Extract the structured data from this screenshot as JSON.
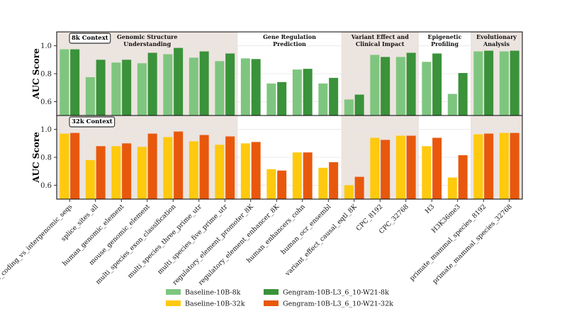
{
  "chart_data": [
    {
      "type": "bar",
      "panel_label": "8k Context",
      "ylabel": "AUC Score",
      "ylim": [
        0.5,
        1.1
      ],
      "yticks": [
        "0.6",
        "0.8",
        "1.0"
      ],
      "grid": true,
      "categories": [
        "demo_coding_vs_intergenomic_seqs",
        "splice_sites_all",
        "human_genomic_element",
        "mouse_genomic_element",
        "multi_species_exon_classification",
        "multi_species_three_prime_utr",
        "multi_species_five_prime_utr",
        "regulatory_element_promoter_8K",
        "regulatory_element_enhancer_8K",
        "human_enhancers_cohn",
        "human_ocr_ensembl",
        "variant_effect_causal_eqtl_8K",
        "CPC_8192",
        "CPC_32768",
        "H3",
        "H3K36me3",
        "primate_mammal_species_8192",
        "primate_mammal_species_32768"
      ],
      "series": [
        {
          "name": "Baseline-10B-8k",
          "color": "#7ec67f",
          "values": [
            0.975,
            0.775,
            0.88,
            0.875,
            0.94,
            0.915,
            0.89,
            0.91,
            0.73,
            0.83,
            0.73,
            0.615,
            0.935,
            0.92,
            0.885,
            0.655,
            0.96,
            0.96
          ]
        },
        {
          "name": "Gengram-10B-L3_6_10-W21-8k",
          "color": "#3a923a",
          "values": [
            0.975,
            0.9,
            0.9,
            0.95,
            0.985,
            0.96,
            0.945,
            0.905,
            0.74,
            0.835,
            0.77,
            0.65,
            0.92,
            0.95,
            0.945,
            0.805,
            0.965,
            0.965
          ]
        }
      ],
      "groups": [
        {
          "label": [
            "Genomic Structure",
            "Understanding"
          ],
          "first": 0,
          "last": 6,
          "shaded": true
        },
        {
          "label": [
            "Gene Regulation",
            "Prediction"
          ],
          "first": 7,
          "last": 10,
          "shaded": false
        },
        {
          "label": [
            "Variant Effect and",
            "Clinical Impact"
          ],
          "first": 11,
          "last": 13,
          "shaded": true
        },
        {
          "label": [
            "Epigenetic",
            "Profiling"
          ],
          "first": 14,
          "last": 15,
          "shaded": false
        },
        {
          "label": [
            "Evolutionary",
            "Analysis"
          ],
          "first": 16,
          "last": 17,
          "shaded": true
        }
      ]
    },
    {
      "type": "bar",
      "panel_label": "32k Context",
      "ylabel": "AUC Score",
      "ylim": [
        0.5,
        1.1
      ],
      "yticks": [
        "0.6",
        "0.8",
        "1.0"
      ],
      "grid": true,
      "series": [
        {
          "name": "Baseline-10B-32k",
          "color": "#ffc90e",
          "values": [
            0.97,
            0.78,
            0.88,
            0.875,
            0.945,
            0.915,
            0.89,
            0.9,
            0.715,
            0.835,
            0.725,
            0.6,
            0.94,
            0.955,
            0.88,
            0.655,
            0.965,
            0.975
          ]
        },
        {
          "name": "Gengram-10B-L3_6_10-W21-32k",
          "color": "#e8580c",
          "values": [
            0.975,
            0.88,
            0.9,
            0.97,
            0.985,
            0.96,
            0.95,
            0.91,
            0.705,
            0.835,
            0.765,
            0.66,
            0.925,
            0.955,
            0.94,
            0.815,
            0.97,
            0.975
          ]
        }
      ]
    }
  ],
  "legend": [
    {
      "label": "Baseline-10B-8k",
      "color": "#7ec67f"
    },
    {
      "label": "Gengram-10B-L3_6_10-W21-8k",
      "color": "#3a923a"
    },
    {
      "label": "Baseline-10B-32k",
      "color": "#ffc90e"
    },
    {
      "label": "Gengram-10B-L3_6_10-W21-32k",
      "color": "#e8580c"
    }
  ],
  "colors": {
    "shade": "#ece4df",
    "grid": "#e6e6e6",
    "axis": "#000000"
  }
}
